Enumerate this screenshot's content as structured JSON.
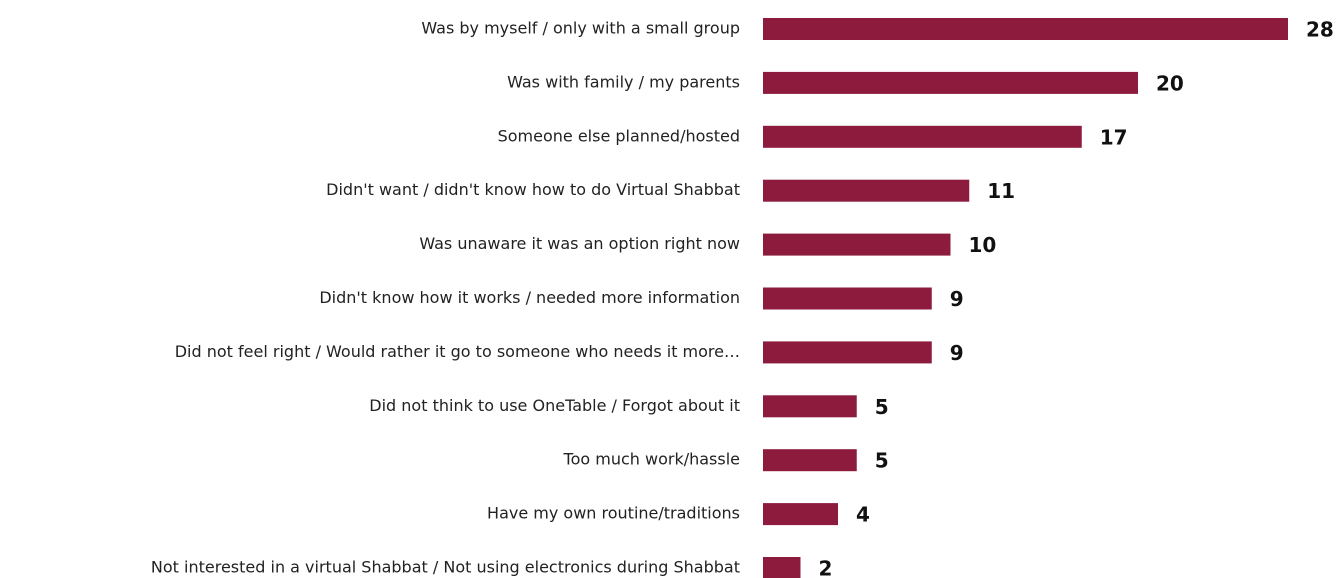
{
  "chart_data": {
    "type": "bar",
    "orientation": "horizontal",
    "color": "#8c1b3e",
    "categories": [
      "Was by myself / only with a small group",
      "Was with family / my parents",
      "Someone else planned/hosted",
      "Didn't want / didn't know how to do Virtual Shabbat",
      "Was unaware it was an option right now",
      "Didn't know how it works / needed more information",
      "Did not feel right / Would rather it go to someone who needs it more…",
      "Did not think to use OneTable / Forgot about it",
      "Too much work/hassle",
      "Have my own routine/traditions",
      "Not interested in a virtual Shabbat / Not using electronics during Shabbat"
    ],
    "values": [
      28,
      20,
      17,
      11,
      10,
      9,
      9,
      5,
      5,
      4,
      2
    ]
  }
}
